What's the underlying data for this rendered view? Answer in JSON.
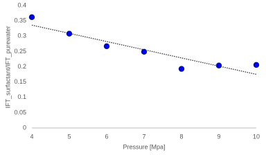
{
  "chart_data": {
    "type": "scatter",
    "xlabel": "Pressure [Mpa]",
    "ylabel": "IFT_surfactant/IFT_purewater",
    "x": [
      4,
      5,
      6,
      7,
      8,
      9,
      10
    ],
    "values": [
      0.362,
      0.308,
      0.267,
      0.249,
      0.193,
      0.204,
      0.206
    ],
    "color": "#0000ee",
    "trendline": "linear",
    "xlim": [
      4,
      10
    ],
    "xticks": [
      4,
      5,
      6,
      7,
      8,
      9,
      10
    ],
    "ylim": [
      0,
      0.4
    ],
    "yticks": [
      0,
      0.05,
      0.1,
      0.15,
      0.2,
      0.25,
      0.3,
      0.35,
      0.4
    ]
  }
}
